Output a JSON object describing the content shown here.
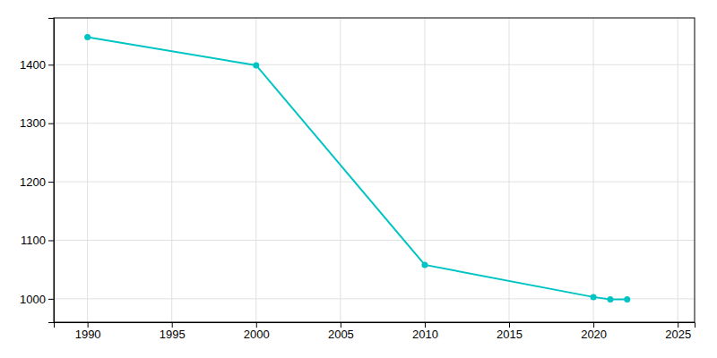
{
  "chart_data": {
    "type": "line",
    "x": [
      1990,
      2000,
      2010,
      2020,
      2021,
      2022
    ],
    "values": [
      1447,
      1399,
      1058,
      1003,
      999,
      999
    ],
    "color": "#00c4c4",
    "marker": "circle",
    "xlim": [
      1988,
      2026
    ],
    "ylim": [
      960,
      1480
    ],
    "xticks": [
      1990,
      1995,
      2000,
      2005,
      2010,
      2015,
      2020,
      2025
    ],
    "yticks": [
      1000,
      1100,
      1200,
      1300,
      1400
    ],
    "grid": true
  }
}
